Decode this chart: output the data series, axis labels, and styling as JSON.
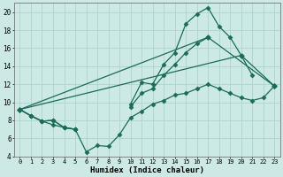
{
  "xlabel": "Humidex (Indice chaleur)",
  "bg_color": "#cce9e5",
  "grid_color": "#aed4cf",
  "line_color": "#1a6b5a",
  "x_values": [
    0,
    1,
    2,
    3,
    4,
    5,
    6,
    7,
    8,
    9,
    10,
    11,
    12,
    13,
    14,
    15,
    16,
    17,
    18,
    19,
    20,
    21,
    22,
    23
  ],
  "y_top": [
    9.2,
    8.5,
    7.9,
    8.0,
    7.2,
    7.0,
    null,
    null,
    null,
    null,
    9.8,
    12.2,
    12.0,
    14.2,
    15.5,
    18.7,
    19.8,
    20.5,
    18.4,
    17.2,
    15.2,
    13.0,
    null,
    11.8
  ],
  "y_mid": [
    9.2,
    8.5,
    7.9,
    8.0,
    7.2,
    7.0,
    null,
    null,
    null,
    null,
    9.5,
    11.0,
    11.5,
    13.0,
    14.2,
    15.5,
    16.5,
    17.2,
    null,
    null,
    null,
    null,
    null,
    null
  ],
  "y_bot": [
    9.2,
    8.5,
    7.9,
    7.5,
    7.2,
    7.0,
    4.5,
    5.2,
    5.1,
    6.4,
    8.3,
    9.0,
    9.8,
    10.2,
    10.8,
    11.0,
    11.5,
    12.0,
    11.5,
    11.0,
    10.5,
    10.2,
    10.5,
    11.8
  ],
  "y_line1": [
    9.2,
    null,
    null,
    null,
    null,
    null,
    null,
    null,
    null,
    null,
    null,
    null,
    null,
    null,
    null,
    null,
    null,
    17.2,
    null,
    null,
    null,
    null,
    null,
    11.8
  ],
  "y_line2": [
    9.2,
    null,
    null,
    null,
    null,
    null,
    null,
    null,
    null,
    null,
    null,
    null,
    null,
    null,
    null,
    null,
    null,
    null,
    null,
    null,
    15.2,
    null,
    null,
    11.8
  ],
  "ylim": [
    4,
    21
  ],
  "yticks": [
    4,
    6,
    8,
    10,
    12,
    14,
    16,
    18,
    20
  ],
  "xticks": [
    0,
    1,
    2,
    3,
    4,
    5,
    6,
    7,
    8,
    9,
    10,
    11,
    12,
    13,
    14,
    15,
    16,
    17,
    18,
    19,
    20,
    21,
    22,
    23
  ]
}
